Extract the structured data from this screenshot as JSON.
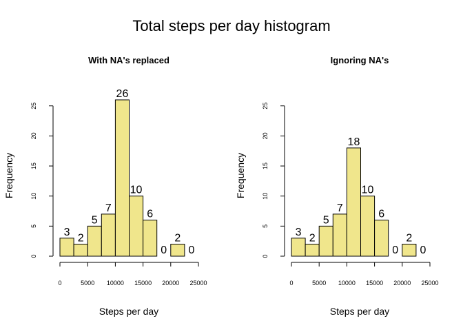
{
  "title": "Total steps per day histogram",
  "colors": {
    "bar_fill": "#F0E68C",
    "bar_stroke": "#000000"
  },
  "chart_data": [
    {
      "type": "bar",
      "title": "With NA's replaced",
      "xlabel": "Steps per day",
      "ylabel": "Frequency",
      "bin_edges": [
        0,
        2500,
        5000,
        7500,
        10000,
        12500,
        15000,
        17500,
        20000,
        22500
      ],
      "values": [
        3,
        2,
        5,
        7,
        26,
        10,
        6,
        0,
        2,
        0
      ],
      "xticks": [
        0,
        5000,
        10000,
        15000,
        20000,
        25000
      ],
      "yticks": [
        0,
        5,
        10,
        15,
        20,
        25
      ],
      "xlim": [
        0,
        25000
      ],
      "ylim": [
        0,
        26
      ],
      "grid": false
    },
    {
      "type": "bar",
      "title": "Ignoring NA's",
      "xlabel": "Steps per day",
      "ylabel": "Frequency",
      "bin_edges": [
        0,
        2500,
        5000,
        7500,
        10000,
        12500,
        15000,
        17500,
        20000,
        22500
      ],
      "values": [
        3,
        2,
        5,
        7,
        18,
        10,
        6,
        0,
        2,
        0
      ],
      "xticks": [
        0,
        5000,
        10000,
        15000,
        20000,
        25000
      ],
      "yticks": [
        0,
        5,
        10,
        15,
        20,
        25
      ],
      "xlim": [
        0,
        25000
      ],
      "ylim": [
        0,
        26
      ],
      "grid": false
    }
  ]
}
